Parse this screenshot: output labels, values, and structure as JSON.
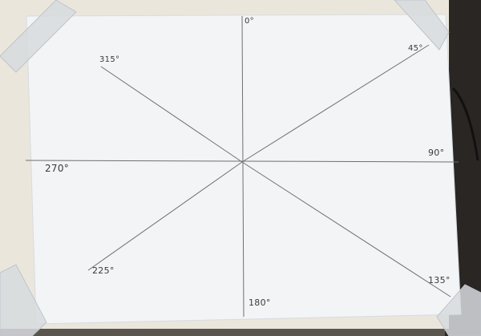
{
  "scene": {
    "description_labels": {
      "angle_0": "0°",
      "angle_45": "45°",
      "angle_90": "90°",
      "angle_135": "135°",
      "angle_180": "180°",
      "angle_225": "225°",
      "angle_270": "270°",
      "angle_315": "315°"
    },
    "colors": {
      "desk": "#5b5550",
      "desk_dark": "#2a2623",
      "board": "#ebe6dc",
      "paper": "#f2f4f6",
      "pencil_line": "#6f6f6f",
      "tape": "#d7dade"
    }
  }
}
